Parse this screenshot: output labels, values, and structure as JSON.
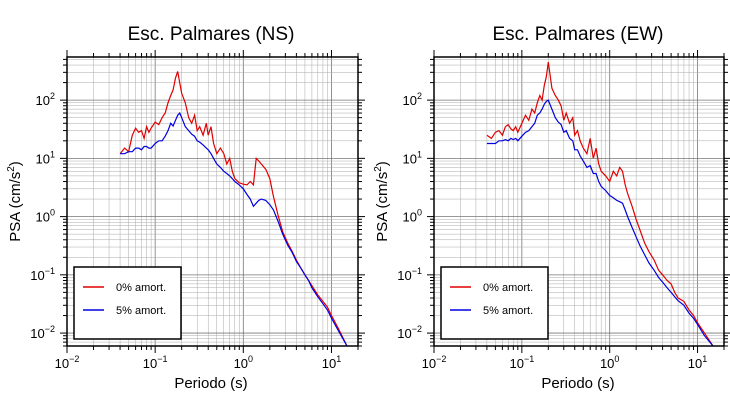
{
  "chart_data": [
    {
      "type": "line",
      "title": "Esc. Palmares (NS)",
      "xlabel": "Periodo (s)",
      "ylabel": "PSA (cm/s²)",
      "xscale": "log",
      "yscale": "log",
      "xlim": [
        0.01,
        20
      ],
      "ylim": [
        0.006,
        550
      ],
      "xticks": [
        {
          "base": "10",
          "exp": "−2"
        },
        {
          "base": "10",
          "exp": "−1"
        },
        {
          "base": "10",
          "exp": "0"
        },
        {
          "base": "10",
          "exp": "1"
        }
      ],
      "yticks": [
        {
          "base": "10",
          "exp": "−2"
        },
        {
          "base": "10",
          "exp": "−1"
        },
        {
          "base": "10",
          "exp": "0"
        },
        {
          "base": "10",
          "exp": "1"
        },
        {
          "base": "10",
          "exp": "2"
        }
      ],
      "grid": true,
      "legend_position": "bottom-left",
      "series": [
        {
          "name": "0% amort.",
          "color": "#e00000",
          "x": [
            0.04,
            0.045,
            0.05,
            0.055,
            0.06,
            0.065,
            0.07,
            0.075,
            0.08,
            0.085,
            0.09,
            0.1,
            0.11,
            0.12,
            0.13,
            0.14,
            0.15,
            0.16,
            0.17,
            0.18,
            0.19,
            0.2,
            0.22,
            0.24,
            0.26,
            0.28,
            0.3,
            0.32,
            0.35,
            0.38,
            0.4,
            0.43,
            0.46,
            0.5,
            0.55,
            0.6,
            0.65,
            0.7,
            0.75,
            0.8,
            0.9,
            1.0,
            1.1,
            1.2,
            1.3,
            1.4,
            1.5,
            1.6,
            1.8,
            2.0,
            2.2,
            2.5,
            2.8,
            3.2,
            3.6,
            4.0,
            4.5,
            5.0,
            5.5,
            6.0,
            7.0,
            8.0,
            9.0,
            10.0,
            12.0,
            15.0
          ],
          "y": [
            12,
            15,
            13,
            25,
            33,
            28,
            30,
            22,
            35,
            28,
            33,
            42,
            38,
            50,
            60,
            90,
            120,
            150,
            240,
            310,
            200,
            130,
            90,
            50,
            40,
            55,
            30,
            35,
            25,
            40,
            25,
            35,
            18,
            12,
            15,
            12,
            8,
            10,
            6,
            4.5,
            3.8,
            3.6,
            3.5,
            4,
            3.5,
            10,
            9,
            8,
            6.5,
            4.5,
            2.2,
            1.0,
            0.55,
            0.35,
            0.25,
            0.18,
            0.13,
            0.1,
            0.08,
            0.065,
            0.045,
            0.035,
            0.028,
            0.02,
            0.012,
            0.006
          ]
        },
        {
          "name": "5% amort.",
          "color": "#0000e0",
          "x": [
            0.04,
            0.045,
            0.05,
            0.055,
            0.06,
            0.065,
            0.07,
            0.075,
            0.08,
            0.085,
            0.09,
            0.1,
            0.11,
            0.12,
            0.13,
            0.14,
            0.15,
            0.16,
            0.17,
            0.18,
            0.19,
            0.2,
            0.22,
            0.24,
            0.26,
            0.28,
            0.3,
            0.32,
            0.35,
            0.38,
            0.4,
            0.43,
            0.46,
            0.5,
            0.55,
            0.6,
            0.65,
            0.7,
            0.75,
            0.8,
            0.9,
            1.0,
            1.1,
            1.2,
            1.3,
            1.4,
            1.5,
            1.6,
            1.8,
            2.0,
            2.2,
            2.5,
            2.8,
            3.2,
            3.6,
            4.0,
            4.5,
            5.0,
            5.5,
            6.0,
            7.0,
            8.0,
            9.0,
            10.0,
            12.0,
            15.0
          ],
          "y": [
            12,
            12,
            13,
            13,
            15,
            15,
            14,
            16,
            16,
            15,
            15,
            18,
            20,
            20,
            24,
            30,
            40,
            36,
            45,
            55,
            60,
            50,
            35,
            30,
            26,
            24,
            20,
            19,
            17,
            15,
            14,
            12,
            10,
            8,
            7,
            6,
            5.5,
            5,
            4.5,
            4,
            3.5,
            3,
            2.4,
            2,
            1.5,
            1.7,
            1.9,
            2,
            1.9,
            1.6,
            1.3,
            0.8,
            0.5,
            0.32,
            0.24,
            0.17,
            0.13,
            0.1,
            0.08,
            0.06,
            0.042,
            0.032,
            0.025,
            0.018,
            0.011,
            0.006
          ]
        }
      ]
    },
    {
      "type": "line",
      "title": "Esc. Palmares (EW)",
      "xlabel": "Periodo (s)",
      "ylabel": "PSA (cm/s²)",
      "xscale": "log",
      "yscale": "log",
      "xlim": [
        0.01,
        20
      ],
      "ylim": [
        0.006,
        550
      ],
      "xticks": [
        {
          "base": "10",
          "exp": "−2"
        },
        {
          "base": "10",
          "exp": "−1"
        },
        {
          "base": "10",
          "exp": "0"
        },
        {
          "base": "10",
          "exp": "1"
        }
      ],
      "yticks": [
        {
          "base": "10",
          "exp": "−2"
        },
        {
          "base": "10",
          "exp": "−1"
        },
        {
          "base": "10",
          "exp": "0"
        },
        {
          "base": "10",
          "exp": "1"
        },
        {
          "base": "10",
          "exp": "2"
        }
      ],
      "grid": true,
      "legend_position": "bottom-left",
      "series": [
        {
          "name": "0% amort.",
          "color": "#e00000",
          "x": [
            0.04,
            0.045,
            0.05,
            0.055,
            0.06,
            0.065,
            0.07,
            0.075,
            0.08,
            0.085,
            0.09,
            0.1,
            0.11,
            0.12,
            0.13,
            0.14,
            0.15,
            0.16,
            0.17,
            0.18,
            0.19,
            0.2,
            0.22,
            0.24,
            0.26,
            0.28,
            0.3,
            0.32,
            0.35,
            0.38,
            0.4,
            0.43,
            0.46,
            0.5,
            0.55,
            0.6,
            0.65,
            0.7,
            0.75,
            0.8,
            0.9,
            1.0,
            1.1,
            1.2,
            1.3,
            1.4,
            1.5,
            1.6,
            1.8,
            2.0,
            2.2,
            2.5,
            2.8,
            3.2,
            3.6,
            4.0,
            4.5,
            5.0,
            5.5,
            6.0,
            7.0,
            8.0,
            9.0,
            10.0,
            12.0,
            15.0
          ],
          "y": [
            25,
            22,
            28,
            30,
            25,
            35,
            38,
            32,
            30,
            35,
            28,
            40,
            55,
            45,
            70,
            60,
            90,
            120,
            100,
            180,
            250,
            450,
            160,
            120,
            100,
            80,
            45,
            60,
            40,
            50,
            25,
            30,
            20,
            15,
            12,
            22,
            10,
            15,
            8,
            6,
            5,
            4,
            6,
            5,
            7,
            6,
            3.5,
            2.5,
            1.5,
            0.9,
            0.6,
            0.35,
            0.25,
            0.18,
            0.12,
            0.1,
            0.08,
            0.07,
            0.05,
            0.04,
            0.035,
            0.025,
            0.02,
            0.015,
            0.01,
            0.006
          ]
        },
        {
          "name": "5% amort.",
          "color": "#0000e0",
          "x": [
            0.04,
            0.045,
            0.05,
            0.055,
            0.06,
            0.065,
            0.07,
            0.075,
            0.08,
            0.085,
            0.09,
            0.1,
            0.11,
            0.12,
            0.13,
            0.14,
            0.15,
            0.16,
            0.17,
            0.18,
            0.19,
            0.2,
            0.22,
            0.24,
            0.26,
            0.28,
            0.3,
            0.32,
            0.35,
            0.38,
            0.4,
            0.43,
            0.46,
            0.5,
            0.55,
            0.6,
            0.65,
            0.7,
            0.75,
            0.8,
            0.9,
            1.0,
            1.1,
            1.2,
            1.3,
            1.4,
            1.5,
            1.6,
            1.8,
            2.0,
            2.2,
            2.5,
            2.8,
            3.2,
            3.6,
            4.0,
            4.5,
            5.0,
            5.5,
            6.0,
            7.0,
            8.0,
            9.0,
            10.0,
            12.0,
            15.0
          ],
          "y": [
            18,
            18,
            18,
            20,
            20,
            21,
            20,
            22,
            21,
            22,
            20,
            24,
            28,
            30,
            35,
            40,
            55,
            60,
            70,
            85,
            95,
            100,
            70,
            50,
            42,
            38,
            28,
            30,
            22,
            20,
            14,
            14,
            11,
            9,
            7,
            7.5,
            5.5,
            5.5,
            4,
            3.3,
            2.8,
            2.3,
            2.1,
            1.9,
            1.8,
            1.7,
            1.3,
            1.0,
            0.65,
            0.45,
            0.32,
            0.22,
            0.16,
            0.12,
            0.09,
            0.075,
            0.06,
            0.05,
            0.042,
            0.036,
            0.03,
            0.022,
            0.018,
            0.014,
            0.009,
            0.006
          ]
        }
      ]
    }
  ]
}
